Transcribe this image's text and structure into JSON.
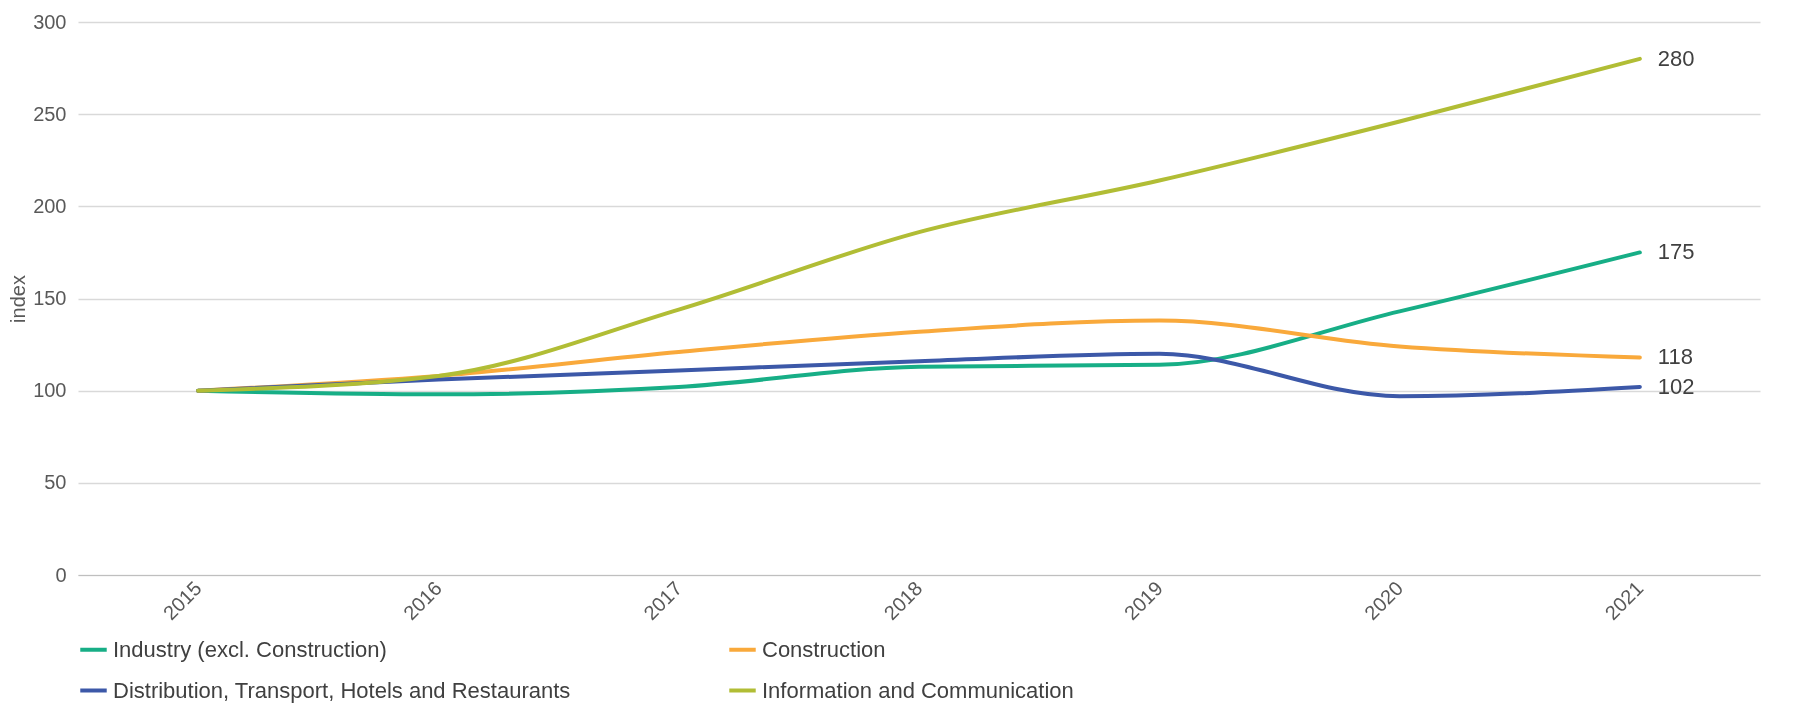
{
  "chart_data": {
    "type": "line",
    "ylabel": "index",
    "categories": [
      "2015",
      "2016",
      "2017",
      "2018",
      "2019",
      "2020",
      "2021"
    ],
    "ylim": [
      0,
      300
    ],
    "yticks": [
      0,
      50,
      100,
      150,
      200,
      250,
      300
    ],
    "grid": "y",
    "legend": "bottom",
    "series": [
      {
        "name": "Industry (excl. Construction)",
        "color": "#17ae86",
        "values": [
          100,
          98,
          102,
          113,
          114,
          143,
          175
        ],
        "value_labels": [
          null,
          null,
          null,
          null,
          null,
          null,
          "175"
        ]
      },
      {
        "name": "Construction",
        "color": "#f9a93b",
        "values": [
          100,
          108,
          121,
          132,
          138,
          124,
          118
        ],
        "value_labels": [
          null,
          null,
          null,
          null,
          null,
          null,
          "118"
        ]
      },
      {
        "name": "Distribution, Transport, Hotels and Restaurants",
        "color": "#3c58a8",
        "values": [
          100,
          106,
          111,
          116,
          120,
          97,
          102
        ],
        "value_labels": [
          null,
          null,
          null,
          null,
          null,
          null,
          "102"
        ]
      },
      {
        "name": "Information and Communication",
        "color": "#b1bd35",
        "values": [
          100,
          108,
          144,
          186,
          214,
          246,
          280
        ],
        "value_labels": [
          null,
          null,
          null,
          null,
          null,
          null,
          "280"
        ]
      }
    ]
  }
}
